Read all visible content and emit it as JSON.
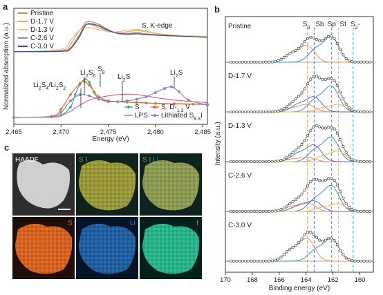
{
  "panels": {
    "a": "a",
    "b": "b",
    "c": "c"
  },
  "colors": {
    "pristine": "#c98a4a",
    "d17": "#e2a865",
    "d13": "#e8c08a",
    "c26": "#8f88c4",
    "c30": "#3e4f96",
    "S": "#2fb08a",
    "LPS": "#d35fa0",
    "S_D13": "#e5692a",
    "lithiated": "#8d84c9",
    "S0": "#e8905a",
    "Sb": "#5b63c8",
    "Sp": "#2f8fc9",
    "St": "#e8b43a",
    "S2m": "#3aa0d8",
    "S_map": "#e3641e",
    "I_map": "#35c8a0",
    "Li_map": "#2c86d0"
  },
  "chart_data": [
    {
      "id": "a",
      "type": "line",
      "title": "S, K-edge",
      "xlabel": "Energy (eV)",
      "ylabel": "Normalized absorption (a.u.)",
      "xlim": [
        2465,
        2485.5
      ],
      "xticks": [
        2465,
        2470,
        2475,
        2480,
        2485
      ],
      "xtick_labels": [
        "2,465",
        "2,470",
        "2,475",
        "2,480",
        "2,485"
      ],
      "legend_top": {
        "placement": "top-left",
        "entries": [
          "Pristine",
          "D-1.7 V",
          "D-1.3 V",
          "C-2.6 V",
          "C-3.0 V"
        ]
      },
      "legend_bottom": {
        "placement": "bottom-right",
        "entries": [
          "S",
          "LPS",
          "S, D-1.3 V",
          "Lithiated S9.3I"
        ]
      },
      "annotations": [
        {
          "text": "Li2S4/Li2S2",
          "x": 2470.2
        },
        {
          "text": "Li2S6",
          "x": 2472.1
        },
        {
          "text": "S8",
          "x": 2472.9
        },
        {
          "text": "Li2S",
          "x": 2476.0
        },
        {
          "text": "Li2S",
          "x": 2481.7
        }
      ],
      "annotation_labels": {
        "li2s4": "Li2S4/Li2S2",
        "li2s6": "Li2S6",
        "s8": "S8",
        "li2s_a": "Li2S",
        "li2s_b": "Li2S"
      },
      "series_top": [
        {
          "name": "Pristine",
          "x": [
            2465,
            2470,
            2471,
            2472,
            2472.5,
            2473,
            2474,
            2475,
            2476,
            2477,
            2478,
            2479,
            2480,
            2481,
            2482,
            2483,
            2484,
            2485.5
          ],
          "y": [
            0.02,
            0.04,
            0.12,
            0.45,
            0.7,
            0.75,
            0.68,
            0.55,
            0.47,
            0.46,
            0.48,
            0.45,
            0.43,
            0.41,
            0.4,
            0.39,
            0.38,
            0.37
          ]
        },
        {
          "name": "D-1.7 V",
          "x": [
            2465,
            2470,
            2471,
            2472,
            2472.5,
            2473,
            2474,
            2475,
            2476,
            2477,
            2478,
            2479,
            2480,
            2481,
            2482,
            2483,
            2484,
            2485.5
          ],
          "y": [
            0.02,
            0.05,
            0.2,
            0.55,
            0.66,
            0.68,
            0.6,
            0.52,
            0.48,
            0.5,
            0.53,
            0.5,
            0.46,
            0.43,
            0.41,
            0.4,
            0.39,
            0.38
          ]
        },
        {
          "name": "D-1.3 V",
          "x": [
            2465,
            2470,
            2471,
            2472,
            2472.5,
            2473,
            2474,
            2475,
            2476,
            2477,
            2478,
            2479,
            2480,
            2481,
            2482,
            2483,
            2484,
            2485.5
          ],
          "y": [
            0.02,
            0.08,
            0.3,
            0.55,
            0.6,
            0.6,
            0.55,
            0.5,
            0.5,
            0.54,
            0.56,
            0.52,
            0.47,
            0.44,
            0.42,
            0.41,
            0.4,
            0.39
          ]
        },
        {
          "name": "C-2.6 V",
          "x": [
            2465,
            2470,
            2471,
            2472,
            2472.5,
            2473,
            2474,
            2475,
            2476,
            2477,
            2478,
            2479,
            2480,
            2481,
            2482,
            2483,
            2484,
            2485.5
          ],
          "y": [
            0.02,
            0.03,
            0.1,
            0.42,
            0.64,
            0.7,
            0.65,
            0.54,
            0.46,
            0.45,
            0.46,
            0.44,
            0.42,
            0.41,
            0.4,
            0.39,
            0.38,
            0.37
          ]
        },
        {
          "name": "C-3.0 V",
          "x": [
            2465,
            2470,
            2471,
            2472,
            2472.5,
            2473,
            2474,
            2475,
            2476,
            2477,
            2478,
            2479,
            2480,
            2481,
            2482,
            2483,
            2484,
            2485.5
          ],
          "y": [
            0.02,
            0.03,
            0.09,
            0.4,
            0.63,
            0.69,
            0.64,
            0.53,
            0.46,
            0.44,
            0.45,
            0.43,
            0.42,
            0.41,
            0.4,
            0.39,
            0.38,
            0.37
          ]
        }
      ],
      "series_bottom": [
        {
          "name": "S",
          "x": [
            2465,
            2469,
            2470,
            2471,
            2471.5,
            2472,
            2472.5,
            2473,
            2473.5,
            2474,
            2475,
            2476,
            2477,
            2478,
            2479,
            2480,
            2482,
            2485.5
          ],
          "y": [
            0.0,
            0.01,
            0.05,
            0.25,
            0.55,
            0.8,
            0.92,
            0.85,
            0.6,
            0.45,
            0.4,
            0.38,
            0.37,
            0.36,
            0.35,
            0.34,
            0.33,
            0.32
          ]
        },
        {
          "name": "LPS",
          "x": [
            2465,
            2469,
            2470,
            2471,
            2472,
            2473,
            2474,
            2475,
            2476,
            2477,
            2478,
            2479,
            2480,
            2481,
            2482,
            2483,
            2484,
            2485.5
          ],
          "y": [
            0.0,
            0.01,
            0.05,
            0.15,
            0.3,
            0.42,
            0.48,
            0.52,
            0.55,
            0.56,
            0.55,
            0.52,
            0.48,
            0.45,
            0.42,
            0.4,
            0.38,
            0.36
          ]
        },
        {
          "name": "S, D-1.3 V",
          "x": [
            2465,
            2469,
            2470,
            2471,
            2472,
            2472.5,
            2473,
            2473.5,
            2474,
            2475,
            2476,
            2477,
            2478,
            2479,
            2480,
            2482,
            2484,
            2485.5
          ],
          "y": [
            0.0,
            0.03,
            0.2,
            0.55,
            0.82,
            0.86,
            0.78,
            0.62,
            0.5,
            0.4,
            0.38,
            0.37,
            0.36,
            0.35,
            0.34,
            0.33,
            0.32,
            0.31
          ]
        },
        {
          "name": "Lithiated S9.3I",
          "x": [
            2465,
            2469,
            2470,
            2471,
            2472,
            2473,
            2474,
            2475,
            2476,
            2477,
            2478,
            2479,
            2480,
            2481,
            2481.7,
            2482.5,
            2483.5,
            2485.5
          ],
          "y": [
            0.0,
            0.02,
            0.12,
            0.4,
            0.55,
            0.52,
            0.44,
            0.38,
            0.38,
            0.4,
            0.44,
            0.5,
            0.6,
            0.7,
            0.74,
            0.62,
            0.42,
            0.3
          ]
        }
      ]
    },
    {
      "id": "b",
      "type": "scatter",
      "xlabel": "Binding energy (eV)",
      "ylabel": "Intensity (a.u.)",
      "xlim": [
        170,
        159
      ],
      "xticks": [
        170,
        168,
        166,
        164,
        162,
        160
      ],
      "top_labels": [
        "S0",
        "Sb",
        "Sp",
        "St",
        "S2-"
      ],
      "reference_lines": [
        {
          "name": "S0",
          "x": 163.9
        },
        {
          "name": "Sb",
          "x": 163.4
        },
        {
          "name": "Sp",
          "x": 162.1
        },
        {
          "name": "St",
          "x": 161.6
        },
        {
          "name": "S2-",
          "x": 160.5
        }
      ],
      "spectra": [
        {
          "label": "Pristine",
          "peaks": {
            "S0": 0.55,
            "Sb": 0.0,
            "Sp": 0.85,
            "St": 0.0,
            "S2-": 0.0
          }
        },
        {
          "label": "D-1.7 V",
          "peaks": {
            "S0": 0.25,
            "Sb": 0.5,
            "Sp": 0.85,
            "St": 0.25,
            "S2-": 0.0
          }
        },
        {
          "label": "D-1.3 V",
          "peaks": {
            "S0": 0.15,
            "Sb": 0.55,
            "Sp": 0.8,
            "St": 0.35,
            "S2-": 0.0
          }
        },
        {
          "label": "C-2.6 V",
          "peaks": {
            "S0": 0.3,
            "Sb": 0.35,
            "Sp": 0.85,
            "St": 0.25,
            "S2-": 0.0
          }
        },
        {
          "label": "C-3.0 V",
          "peaks": {
            "S0": 0.75,
            "Sb": 0.0,
            "Sp": 0.75,
            "St": 0.0,
            "S2-": 0.0
          }
        }
      ]
    }
  ],
  "maps": {
    "haadf": "HAADF",
    "s_i": {
      "a": "S",
      "b": "I"
    },
    "s_i_li": {
      "a": "S",
      "b": "I",
      "c": "Li"
    },
    "s": "S",
    "li": "Li",
    "i": "I"
  }
}
